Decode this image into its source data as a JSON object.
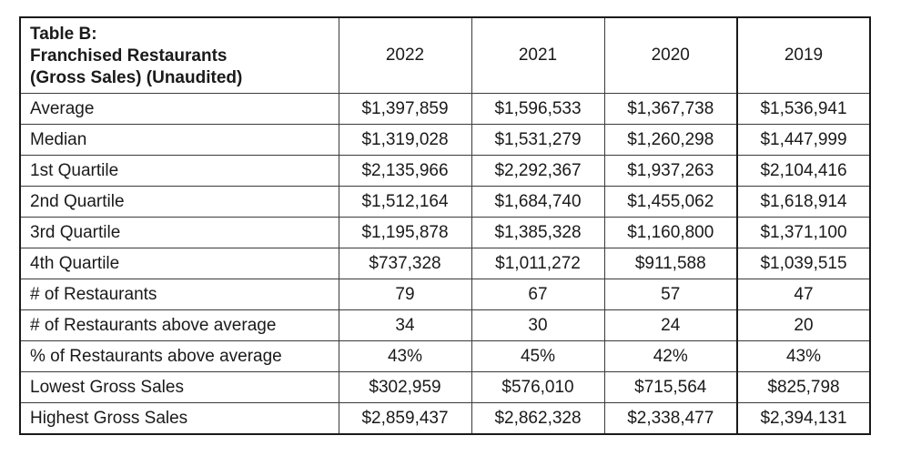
{
  "table": {
    "title_lines": [
      "Table B:",
      "Franchised Restaurants",
      "(Gross Sales) (Unaudited)"
    ],
    "years": [
      "2022",
      "2021",
      "2020",
      "2019"
    ],
    "rows": [
      {
        "label": "Average",
        "values": [
          "$1,397,859",
          "$1,596,533",
          "$1,367,738",
          "$1,536,941"
        ]
      },
      {
        "label": "Median",
        "values": [
          "$1,319,028",
          "$1,531,279",
          "$1,260,298",
          "$1,447,999"
        ]
      },
      {
        "label": "1st Quartile",
        "values": [
          "$2,135,966",
          "$2,292,367",
          "$1,937,263",
          "$2,104,416"
        ]
      },
      {
        "label": "2nd Quartile",
        "values": [
          "$1,512,164",
          "$1,684,740",
          "$1,455,062",
          "$1,618,914"
        ]
      },
      {
        "label": "3rd Quartile",
        "values": [
          "$1,195,878",
          "$1,385,328",
          "$1,160,800",
          "$1,371,100"
        ]
      },
      {
        "label": "4th Quartile",
        "values": [
          "$737,328",
          "$1,011,272",
          "$911,588",
          "$1,039,515"
        ]
      },
      {
        "label": "# of Restaurants",
        "values": [
          "79",
          "67",
          "57",
          "47"
        ]
      },
      {
        "label": "# of Restaurants above average",
        "values": [
          "34",
          "30",
          "24",
          "20"
        ]
      },
      {
        "label": "% of Restaurants above average",
        "values": [
          "43%",
          "45%",
          "42%",
          "43%"
        ]
      },
      {
        "label": "Lowest Gross Sales",
        "values": [
          "$302,959",
          "$576,010",
          "$715,564",
          "$825,798"
        ]
      },
      {
        "label": "Highest Gross Sales",
        "values": [
          "$2,859,437",
          "$2,862,328",
          "$2,338,477",
          "$2,394,131"
        ]
      }
    ]
  }
}
